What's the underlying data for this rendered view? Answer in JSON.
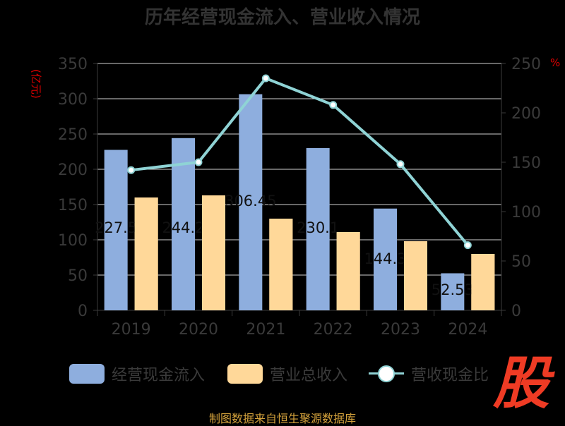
{
  "title": "历年经营现金流入、营业收入情况",
  "unit_left": "(亿元)",
  "unit_right": "%",
  "source": "制图数据来自恒生聚源数据库",
  "logo_text": "股",
  "colors": {
    "bar1": "#8eaede",
    "bar2": "#ffd899",
    "line": "#8fd3d5",
    "axis_text": "#3a3a3a",
    "grid": "#d0d0d0",
    "unit": "#e00000",
    "source": "#d4a23c",
    "logo": "#ef3b24"
  },
  "legend": {
    "item1": "经营现金流入",
    "item2": "营业总收入",
    "item3": "营收现金比"
  },
  "chart_data": {
    "type": "bar",
    "categories": [
      "2019",
      "2020",
      "2021",
      "2022",
      "2023",
      "2024"
    ],
    "series": [
      {
        "name": "经营现金流入",
        "type": "bar",
        "axis": "left",
        "values": [
          227.5,
          244.2,
          306.45,
          230.1,
          144.3,
          52.53
        ]
      },
      {
        "name": "营业总收入",
        "type": "bar",
        "axis": "left",
        "values": [
          160,
          163,
          130,
          111,
          98,
          80
        ]
      },
      {
        "name": "营收现金比",
        "type": "line",
        "axis": "right",
        "values": [
          142,
          150,
          235,
          208,
          148,
          66
        ]
      }
    ],
    "bar_labels": [
      "227.5",
      "244.2",
      "306.45",
      "230.1",
      "144.3",
      "52.53"
    ],
    "ylim_left": [
      0,
      350
    ],
    "yticks_left": [
      0,
      50,
      100,
      150,
      200,
      250,
      300,
      350
    ],
    "ylim_right": [
      0,
      250
    ],
    "yticks_right": [
      0,
      50,
      100,
      150,
      200,
      250
    ],
    "grid": true,
    "legend_position": "bottom"
  }
}
